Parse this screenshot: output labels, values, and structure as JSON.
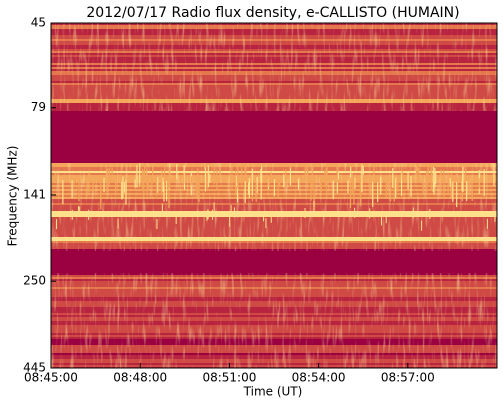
{
  "chart_data": {
    "type": "spectrogram",
    "title": "2012/07/17  Radio flux density, e-CALLISTO (HUMAIN)",
    "xlabel": "Time (UT)",
    "ylabel": "Frequency (MHz)",
    "xlim": [
      31500,
      32400
    ],
    "xticks": [
      {
        "value": 31500,
        "label": "08:45:00"
      },
      {
        "value": 31680,
        "label": "08:48:00"
      },
      {
        "value": 31860,
        "label": "08:51:00"
      },
      {
        "value": 32040,
        "label": "08:54:00"
      },
      {
        "value": 32220,
        "label": "08:57:00"
      }
    ],
    "ylim": [
      445,
      45
    ],
    "yscale": "log",
    "yticks": [
      45,
      79,
      141,
      250,
      445
    ]
  }
}
